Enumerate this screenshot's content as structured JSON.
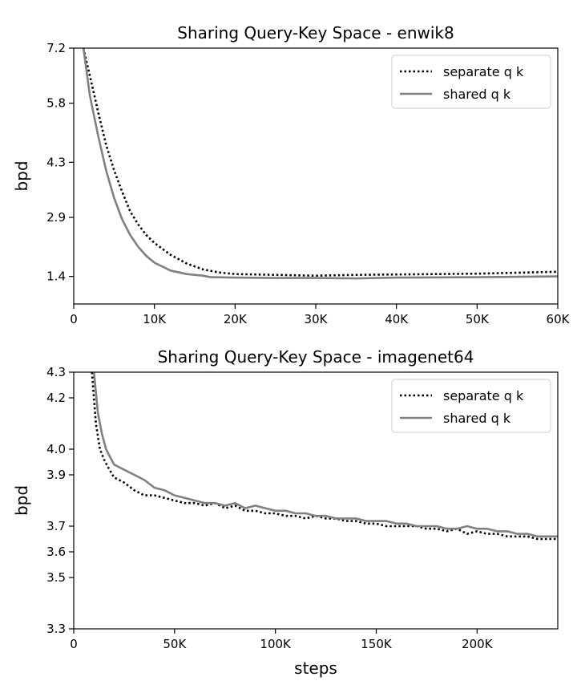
{
  "chart_data": [
    {
      "type": "line",
      "title": "Sharing Query-Key Space - enwik8",
      "xlabel": "",
      "ylabel": "bpd",
      "xlim": [
        0,
        60000
      ],
      "ylim": [
        0.7,
        7.2
      ],
      "xticks": [
        0,
        10000,
        20000,
        30000,
        40000,
        50000,
        60000
      ],
      "xtick_labels": [
        "0",
        "10K",
        "20K",
        "30K",
        "40K",
        "50K",
        "60K"
      ],
      "yticks": [
        1.4,
        2.9,
        4.3,
        5.8,
        7.2
      ],
      "ytick_labels": [
        "1.4",
        "2.9",
        "4.3",
        "5.8",
        "7.2"
      ],
      "grid": false,
      "legend_position": "top-right",
      "series": [
        {
          "name": "separate q k",
          "style": "dotted",
          "color": "#000000",
          "x": [
            1200,
            2000,
            3000,
            4000,
            5000,
            6000,
            7000,
            8000,
            9000,
            10000,
            12000,
            14000,
            16000,
            18000,
            20000,
            25000,
            30000,
            35000,
            40000,
            50000,
            60000
          ],
          "y": [
            7.2,
            6.5,
            5.6,
            4.75,
            4.1,
            3.55,
            3.05,
            2.72,
            2.45,
            2.25,
            1.95,
            1.73,
            1.58,
            1.5,
            1.46,
            1.44,
            1.42,
            1.44,
            1.45,
            1.47,
            1.52
          ]
        },
        {
          "name": "shared q k",
          "style": "solid",
          "color": "#808080",
          "x": [
            1200,
            2000,
            3000,
            4000,
            5000,
            6000,
            7000,
            8000,
            9000,
            10000,
            12000,
            14000,
            16000,
            17000,
            20000,
            25000,
            30000,
            35000,
            40000,
            50000,
            60000
          ],
          "y": [
            7.2,
            6.0,
            5.0,
            4.1,
            3.4,
            2.85,
            2.45,
            2.15,
            1.92,
            1.75,
            1.55,
            1.46,
            1.42,
            1.38,
            1.37,
            1.36,
            1.36,
            1.35,
            1.37,
            1.38,
            1.4
          ]
        }
      ]
    },
    {
      "type": "line",
      "title": "Sharing Query-Key Space - imagenet64",
      "xlabel": "steps",
      "ylabel": "bpd",
      "xlim": [
        0,
        240000
      ],
      "ylim": [
        3.3,
        4.3
      ],
      "xticks": [
        0,
        50000,
        100000,
        150000,
        200000
      ],
      "xtick_labels": [
        "0",
        "50K",
        "100K",
        "150K",
        "200K"
      ],
      "yticks": [
        3.3,
        3.5,
        3.6,
        3.7,
        3.9,
        4.0,
        4.2,
        4.3
      ],
      "ytick_labels": [
        "3.3",
        "3.5",
        "3.6",
        "3.7",
        "3.9",
        "4.0",
        "4.2",
        "4.3"
      ],
      "grid": false,
      "legend_position": "top-right",
      "series": [
        {
          "name": "separate q k",
          "style": "dotted",
          "color": "#000000",
          "x": [
            9000,
            11000,
            13000,
            15000,
            17000,
            20000,
            25000,
            30000,
            35000,
            40000,
            45000,
            50000,
            55000,
            60000,
            65000,
            70000,
            75000,
            80000,
            85000,
            90000,
            95000,
            100000,
            105000,
            110000,
            115000,
            120000,
            125000,
            130000,
            135000,
            140000,
            145000,
            150000,
            155000,
            160000,
            165000,
            170000,
            175000,
            180000,
            185000,
            190000,
            195000,
            200000,
            205000,
            210000,
            215000,
            220000,
            225000,
            230000,
            235000,
            240000
          ],
          "y": [
            4.3,
            4.1,
            4.0,
            3.96,
            3.93,
            3.89,
            3.87,
            3.84,
            3.82,
            3.82,
            3.81,
            3.8,
            3.79,
            3.79,
            3.78,
            3.79,
            3.77,
            3.78,
            3.76,
            3.76,
            3.75,
            3.75,
            3.74,
            3.74,
            3.73,
            3.74,
            3.73,
            3.73,
            3.72,
            3.72,
            3.71,
            3.71,
            3.7,
            3.7,
            3.7,
            3.7,
            3.69,
            3.69,
            3.68,
            3.69,
            3.67,
            3.68,
            3.67,
            3.67,
            3.66,
            3.66,
            3.66,
            3.65,
            3.65,
            3.65
          ]
        },
        {
          "name": "shared q k",
          "style": "solid",
          "color": "#808080",
          "x": [
            10000,
            12000,
            14000,
            16000,
            18000,
            20000,
            25000,
            30000,
            35000,
            40000,
            45000,
            50000,
            55000,
            60000,
            65000,
            70000,
            75000,
            80000,
            85000,
            90000,
            95000,
            100000,
            105000,
            110000,
            115000,
            120000,
            125000,
            130000,
            135000,
            140000,
            145000,
            150000,
            155000,
            160000,
            165000,
            170000,
            175000,
            180000,
            185000,
            190000,
            195000,
            200000,
            205000,
            210000,
            215000,
            220000,
            225000,
            230000,
            235000,
            240000
          ],
          "y": [
            4.3,
            4.14,
            4.06,
            4.0,
            3.97,
            3.94,
            3.92,
            3.9,
            3.88,
            3.85,
            3.84,
            3.82,
            3.81,
            3.8,
            3.79,
            3.79,
            3.78,
            3.79,
            3.77,
            3.78,
            3.77,
            3.76,
            3.76,
            3.75,
            3.75,
            3.74,
            3.74,
            3.73,
            3.73,
            3.73,
            3.72,
            3.72,
            3.72,
            3.71,
            3.71,
            3.7,
            3.7,
            3.7,
            3.69,
            3.69,
            3.7,
            3.69,
            3.69,
            3.68,
            3.68,
            3.67,
            3.67,
            3.66,
            3.66,
            3.66
          ]
        }
      ]
    }
  ]
}
